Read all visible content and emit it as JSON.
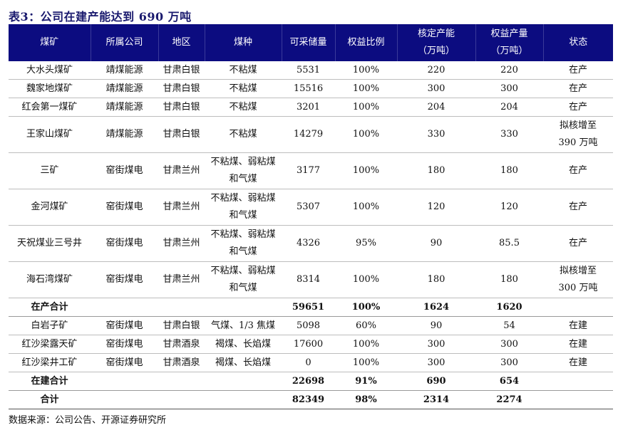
{
  "title": "表3：公司在建产能达到 690 万吨",
  "header_color": "#0c0c80",
  "columns": [
    "煤矿",
    "所属公司",
    "地区",
    "煤种",
    "可采储量",
    "权益比例",
    "核定产能\n（万吨）",
    "权益产量\n（万吨）",
    "状态"
  ],
  "rows": [
    {
      "cells": [
        "大水头煤矿",
        "靖煤能源",
        "甘肃白银",
        "不粘煤",
        "5531",
        "100%",
        "220",
        "220",
        "在产"
      ]
    },
    {
      "cells": [
        "魏家地煤矿",
        "靖煤能源",
        "甘肃白银",
        "不粘煤",
        "15516",
        "100%",
        "300",
        "300",
        "在产"
      ]
    },
    {
      "cells": [
        "红会第一煤矿",
        "靖煤能源",
        "甘肃白银",
        "不粘煤",
        "3201",
        "100%",
        "204",
        "204",
        "在产"
      ]
    },
    {
      "cells": [
        "王家山煤矿",
        "靖煤能源",
        "甘肃白银",
        "不粘煤",
        "14279",
        "100%",
        "330",
        "330",
        "拟核增至\n390 万吨"
      ],
      "tall": true
    },
    {
      "cells": [
        "三矿",
        "窑街煤电",
        "甘肃兰州",
        "不粘煤、弱粘煤\n和气煤",
        "3177",
        "100%",
        "180",
        "180",
        "在产"
      ],
      "tall": true
    },
    {
      "cells": [
        "金河煤矿",
        "窑街煤电",
        "甘肃兰州",
        "不粘煤、弱粘煤\n和气煤",
        "5307",
        "100%",
        "120",
        "120",
        "在产"
      ],
      "tall": true
    },
    {
      "cells": [
        "天祝煤业三号井",
        "窑街煤电",
        "甘肃兰州",
        "不粘煤、弱粘煤\n和气煤",
        "4326",
        "95%",
        "90",
        "85.5",
        "在产"
      ],
      "tall": true
    },
    {
      "cells": [
        "海石湾煤矿",
        "窑街煤电",
        "甘肃兰州",
        "不粘煤、弱粘煤\n和气煤",
        "8314",
        "100%",
        "180",
        "180",
        "拟核增至\n300 万吨"
      ],
      "tall": true
    },
    {
      "cells": [
        "在产合计",
        "",
        "",
        "",
        "59651",
        "100%",
        "1624",
        "1620",
        ""
      ],
      "total": true
    },
    {
      "cells": [
        "白岩子矿",
        "窑街煤电",
        "甘肃白银",
        "气煤、1/3 焦煤",
        "5098",
        "60%",
        "90",
        "54",
        "在建"
      ]
    },
    {
      "cells": [
        "红沙梁露天矿",
        "窑街煤电",
        "甘肃酒泉",
        "褐煤、长焰煤",
        "17600",
        "100%",
        "300",
        "300",
        "在建"
      ]
    },
    {
      "cells": [
        "红沙梁井工矿",
        "窑街煤电",
        "甘肃酒泉",
        "褐煤、长焰煤",
        "0",
        "100%",
        "300",
        "300",
        "在建"
      ]
    },
    {
      "cells": [
        "在建合计",
        "",
        "",
        "",
        "22698",
        "91%",
        "690",
        "654",
        ""
      ],
      "total": true
    },
    {
      "cells": [
        "合计",
        "",
        "",
        "",
        "82349",
        "98%",
        "2314",
        "2274",
        ""
      ],
      "total": true,
      "last": true
    }
  ],
  "source": "数据来源：公司公告、开源证券研究所"
}
